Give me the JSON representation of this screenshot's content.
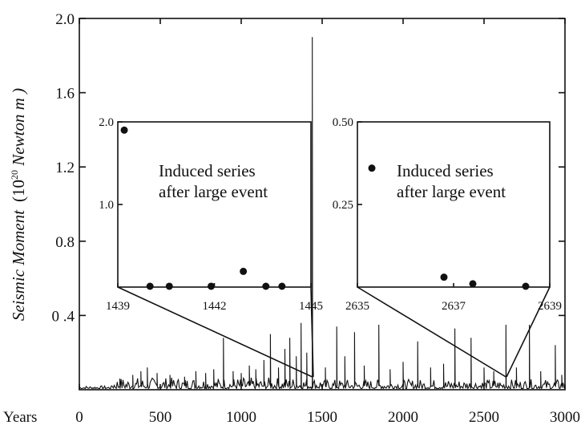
{
  "chart_data": {
    "type": "line",
    "xlabel": "Years",
    "ylabel_main": "Seismic Moment",
    "ylabel_unit": "(10",
    "ylabel_sup": "20",
    "ylabel_unit2": " Newton m )",
    "xlim": [
      0,
      3000
    ],
    "ylim": [
      0,
      2.0
    ],
    "x_ticks": [
      "0",
      "500",
      "1000",
      "1500",
      "2000",
      "2500",
      "3000"
    ],
    "y_ticks": [
      "2.0",
      "1.6",
      "1.2",
      "0.8",
      "0 .4"
    ],
    "y_tick_values": [
      2.0,
      1.6,
      1.2,
      0.8,
      0.4
    ],
    "background_level": 0.02,
    "spikes": [
      {
        "x": 250,
        "y": 0.06
      },
      {
        "x": 330,
        "y": 0.08
      },
      {
        "x": 380,
        "y": 0.1
      },
      {
        "x": 420,
        "y": 0.12
      },
      {
        "x": 480,
        "y": 0.09
      },
      {
        "x": 560,
        "y": 0.08
      },
      {
        "x": 650,
        "y": 0.07
      },
      {
        "x": 720,
        "y": 0.1
      },
      {
        "x": 780,
        "y": 0.09
      },
      {
        "x": 830,
        "y": 0.11
      },
      {
        "x": 890,
        "y": 0.28
      },
      {
        "x": 950,
        "y": 0.1
      },
      {
        "x": 1000,
        "y": 0.09
      },
      {
        "x": 1050,
        "y": 0.13
      },
      {
        "x": 1090,
        "y": 0.11
      },
      {
        "x": 1140,
        "y": 0.16
      },
      {
        "x": 1180,
        "y": 0.3
      },
      {
        "x": 1230,
        "y": 0.12
      },
      {
        "x": 1270,
        "y": 0.22
      },
      {
        "x": 1300,
        "y": 0.28
      },
      {
        "x": 1340,
        "y": 0.18
      },
      {
        "x": 1370,
        "y": 0.36
      },
      {
        "x": 1405,
        "y": 0.2
      },
      {
        "x": 1439,
        "y": 1.9
      },
      {
        "x": 1520,
        "y": 0.12
      },
      {
        "x": 1590,
        "y": 0.34
      },
      {
        "x": 1640,
        "y": 0.18
      },
      {
        "x": 1700,
        "y": 0.31
      },
      {
        "x": 1760,
        "y": 0.13
      },
      {
        "x": 1850,
        "y": 0.35
      },
      {
        "x": 1920,
        "y": 0.11
      },
      {
        "x": 2000,
        "y": 0.15
      },
      {
        "x": 2090,
        "y": 0.26
      },
      {
        "x": 2170,
        "y": 0.12
      },
      {
        "x": 2250,
        "y": 0.14
      },
      {
        "x": 2320,
        "y": 0.33
      },
      {
        "x": 2420,
        "y": 0.28
      },
      {
        "x": 2500,
        "y": 0.12
      },
      {
        "x": 2560,
        "y": 0.1
      },
      {
        "x": 2635,
        "y": 0.35
      },
      {
        "x": 2700,
        "y": 0.12
      },
      {
        "x": 2780,
        "y": 0.35
      },
      {
        "x": 2850,
        "y": 0.1
      },
      {
        "x": 2940,
        "y": 0.24
      },
      {
        "x": 2980,
        "y": 0.08
      }
    ],
    "insets": [
      {
        "xlim": [
          1439,
          1445
        ],
        "ylim": [
          0,
          2.0
        ],
        "x_ticks": [
          "1439",
          "1442",
          "1445"
        ],
        "x_tick_values": [
          1439,
          1442,
          1445
        ],
        "y_ticks": [
          "2.0",
          "1.0"
        ],
        "y_tick_values": [
          2.0,
          1.0
        ],
        "annotation_line1": "Induced series",
        "annotation_line2": "after large event",
        "points": [
          {
            "x": 1439.2,
            "y": 1.9
          },
          {
            "x": 1440.0,
            "y": 0.0
          },
          {
            "x": 1440.6,
            "y": 0.01
          },
          {
            "x": 1441.9,
            "y": 0.01
          },
          {
            "x": 1442.9,
            "y": 0.19
          },
          {
            "x": 1443.6,
            "y": 0.0
          },
          {
            "x": 1444.1,
            "y": 0.0
          }
        ]
      },
      {
        "xlim": [
          2635,
          2639
        ],
        "ylim": [
          0,
          0.5
        ],
        "x_ticks": [
          "2635",
          "2637",
          "2639"
        ],
        "x_tick_values": [
          2635,
          2637,
          2639
        ],
        "y_ticks": [
          "0.50",
          "0.25"
        ],
        "y_tick_values": [
          0.5,
          0.25
        ],
        "annotation_line1": "Induced series",
        "annotation_line2": "after large event",
        "points": [
          {
            "x": 2635.3,
            "y": 0.36
          },
          {
            "x": 2636.8,
            "y": 0.03
          },
          {
            "x": 2637.4,
            "y": 0.01
          },
          {
            "x": 2638.5,
            "y": 0.0
          }
        ]
      }
    ]
  }
}
